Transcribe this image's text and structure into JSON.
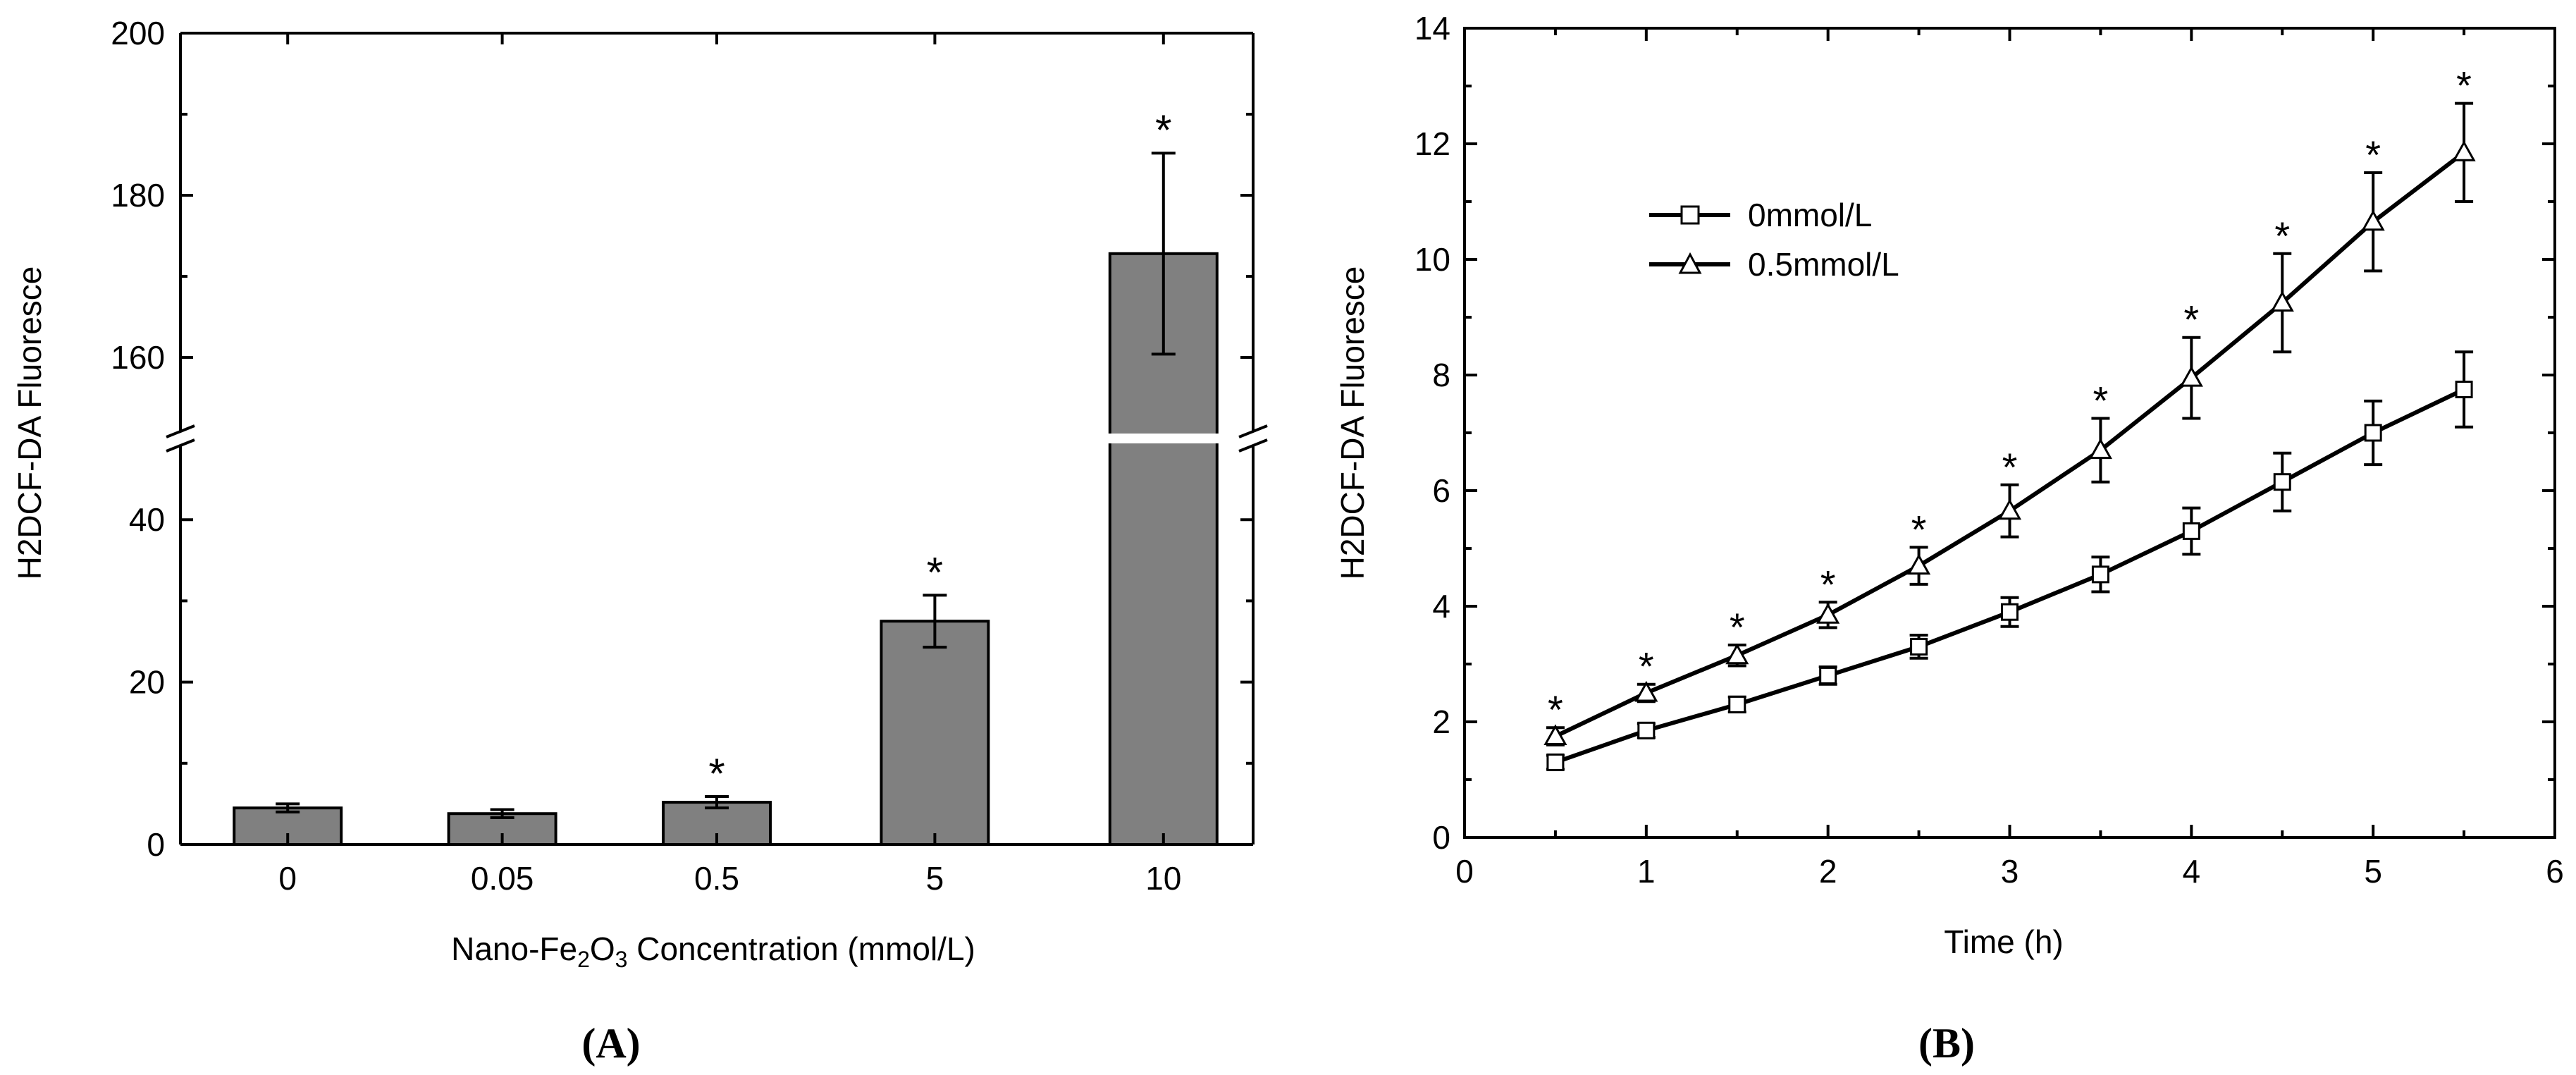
{
  "chart_data": [
    {
      "panel_label": "(A)",
      "type": "bar",
      "xlabel": {
        "prefix": "Nano-Fe",
        "sub1": "2",
        "mid": "O",
        "sub2": "3",
        "suffix": " Concentration (mmol/L)"
      },
      "ylabel": "H2DCF-DA Fluoresce",
      "categories": [
        "0",
        "0.05",
        "0.5",
        "5",
        "10"
      ],
      "values": [
        4.5,
        3.8,
        5.2,
        27.5,
        172.8
      ],
      "errors": [
        0.5,
        0.5,
        0.7,
        3.2,
        12.4
      ],
      "significant": [
        false,
        false,
        true,
        true,
        true
      ],
      "marker": "*",
      "y_lower_range": [
        0,
        50
      ],
      "y_upper_range": [
        150,
        200
      ],
      "y_lower_ticks": [
        "0",
        "20",
        "40"
      ],
      "y_upper_ticks": [
        "160",
        "180",
        "200"
      ],
      "bar_color": "#808080",
      "axis_break": true
    },
    {
      "panel_label": "(B)",
      "type": "line",
      "xlabel": "Time (h)",
      "ylabel": "H2DCF-DA Fluoresce",
      "xlim": [
        0,
        6
      ],
      "ylim": [
        0,
        14
      ],
      "x_ticks": [
        "0",
        "1",
        "2",
        "3",
        "4",
        "5",
        "6"
      ],
      "y_ticks": [
        "0",
        "2",
        "4",
        "6",
        "8",
        "10",
        "12",
        "14"
      ],
      "x": [
        0.5,
        1.0,
        1.5,
        2.0,
        2.5,
        3.0,
        3.5,
        4.0,
        4.5,
        5.0,
        5.5
      ],
      "series": [
        {
          "name": "0mmol/L",
          "marker": "square",
          "values": [
            1.3,
            1.85,
            2.3,
            2.8,
            3.3,
            3.9,
            4.55,
            5.3,
            6.15,
            7.0,
            7.75
          ],
          "errors": [
            0.12,
            0.12,
            0.13,
            0.15,
            0.2,
            0.25,
            0.3,
            0.4,
            0.5,
            0.55,
            0.65
          ]
        },
        {
          "name": "0.5mmol/L",
          "marker": "triangle",
          "values": [
            1.75,
            2.5,
            3.15,
            3.85,
            4.7,
            5.65,
            6.7,
            7.95,
            9.25,
            10.65,
            11.85
          ],
          "errors": [
            0.15,
            0.15,
            0.18,
            0.22,
            0.32,
            0.45,
            0.55,
            0.7,
            0.85,
            0.85,
            0.85
          ],
          "significant": [
            true,
            true,
            true,
            true,
            true,
            true,
            true,
            true,
            true,
            true,
            true
          ]
        }
      ],
      "marker_symbol": "*",
      "legend_position": "upper-left"
    }
  ]
}
